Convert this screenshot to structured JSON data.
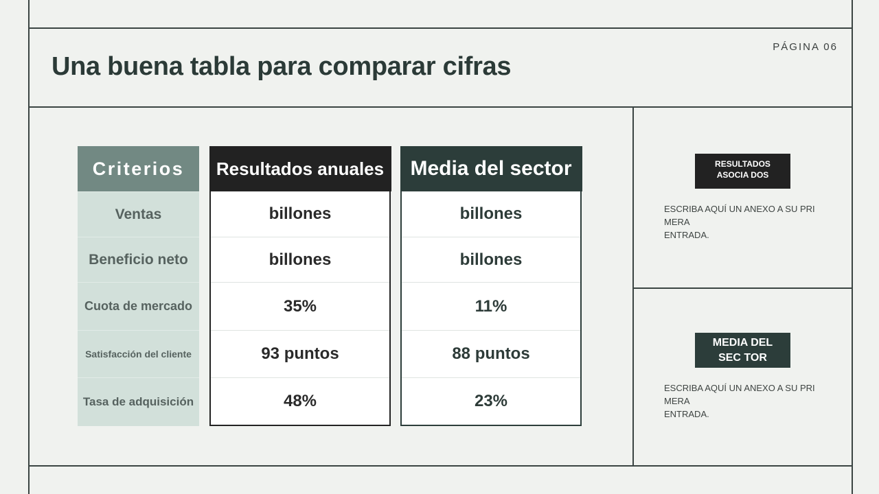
{
  "page_label": "PÁGINA 06",
  "title": "Una buena tabla para comparar cifras",
  "table": {
    "headers": [
      "Criterios",
      "Resultados anuales",
      "Media del sector"
    ],
    "rows": [
      {
        "criterio": "Ventas",
        "resultados": "billones",
        "media": "billones"
      },
      {
        "criterio": "Beneficio neto",
        "resultados": "billones",
        "media": "billones"
      },
      {
        "criterio": "Cuota de mercado",
        "resultados": "35%",
        "media": "11%"
      },
      {
        "criterio": "Satisfacción del cliente",
        "resultados": "93 puntos",
        "media": "88 puntos"
      },
      {
        "criterio": "Tasa de adquisición",
        "resultados": "48%",
        "media": "23%"
      }
    ]
  },
  "side": [
    {
      "tag": "RESULTADOS ASOCIA DOS",
      "note": "ESCRIBA AQUÍ UN ANEXO A SU PRI\nMERA\nENTRADA.",
      "color": "#222222"
    },
    {
      "tag": "MEDIA DEL SEC TOR",
      "note": "ESCRIBA AQUÍ UN ANEXO A SU PRI\nMERA\nENTRADA.",
      "color": "#2c3d3a"
    }
  ]
}
